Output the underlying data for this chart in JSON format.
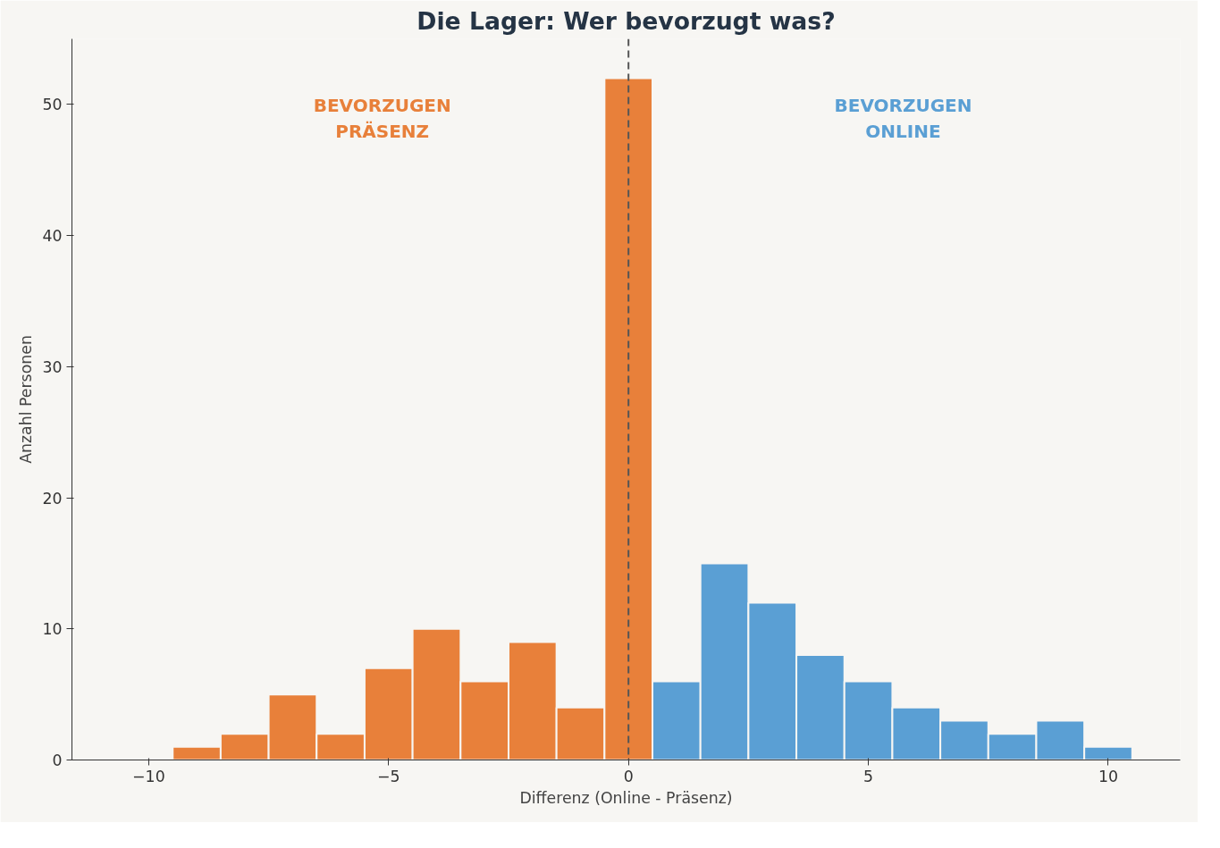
{
  "chart_data": {
    "type": "histogram",
    "title": "Die Lager: Wer bevorzugt was?",
    "xlabel": "Differenz (Online - Präsenz)",
    "ylabel": "Anzahl Personen",
    "bins": [
      -9.5,
      -8.5,
      -7.5,
      -6.5,
      -5.5,
      -4.5,
      -3.5,
      -2.5,
      -1.5,
      -0.5,
      0.5,
      1.5,
      2.5,
      3.5,
      4.5,
      5.5,
      6.5,
      7.5,
      8.5,
      9.5,
      10.5
    ],
    "values": [
      1,
      2,
      5,
      2,
      7,
      10,
      6,
      9,
      4,
      52,
      6,
      15,
      12,
      8,
      6,
      4,
      3,
      2,
      3,
      1
    ],
    "colors": [
      "#e8803a",
      "#e8803a",
      "#e8803a",
      "#e8803a",
      "#e8803a",
      "#e8803a",
      "#e8803a",
      "#e8803a",
      "#e8803a",
      "#e8803a",
      "#5a9fd4",
      "#5a9fd4",
      "#5a9fd4",
      "#5a9fd4",
      "#5a9fd4",
      "#5a9fd4",
      "#5a9fd4",
      "#5a9fd4",
      "#5a9fd4",
      "#5a9fd4"
    ],
    "xlim": [
      -11.6,
      11.5
    ],
    "ylim": [
      0,
      55
    ],
    "xticks": [
      {
        "value": -10,
        "label": "−10"
      },
      {
        "value": -5,
        "label": "−5"
      },
      0,
      5,
      10
    ],
    "yticks": [
      0,
      10,
      20,
      30,
      40,
      50
    ],
    "ref_lines": [
      {
        "axis": "x",
        "value": 0,
        "color": "#555555",
        "line_style": "dashed"
      }
    ],
    "annotations": [
      "BEVORZUGEN\nPRÄSENZ",
      "BEVORZUGEN\nONLINE"
    ],
    "grid": false
  }
}
